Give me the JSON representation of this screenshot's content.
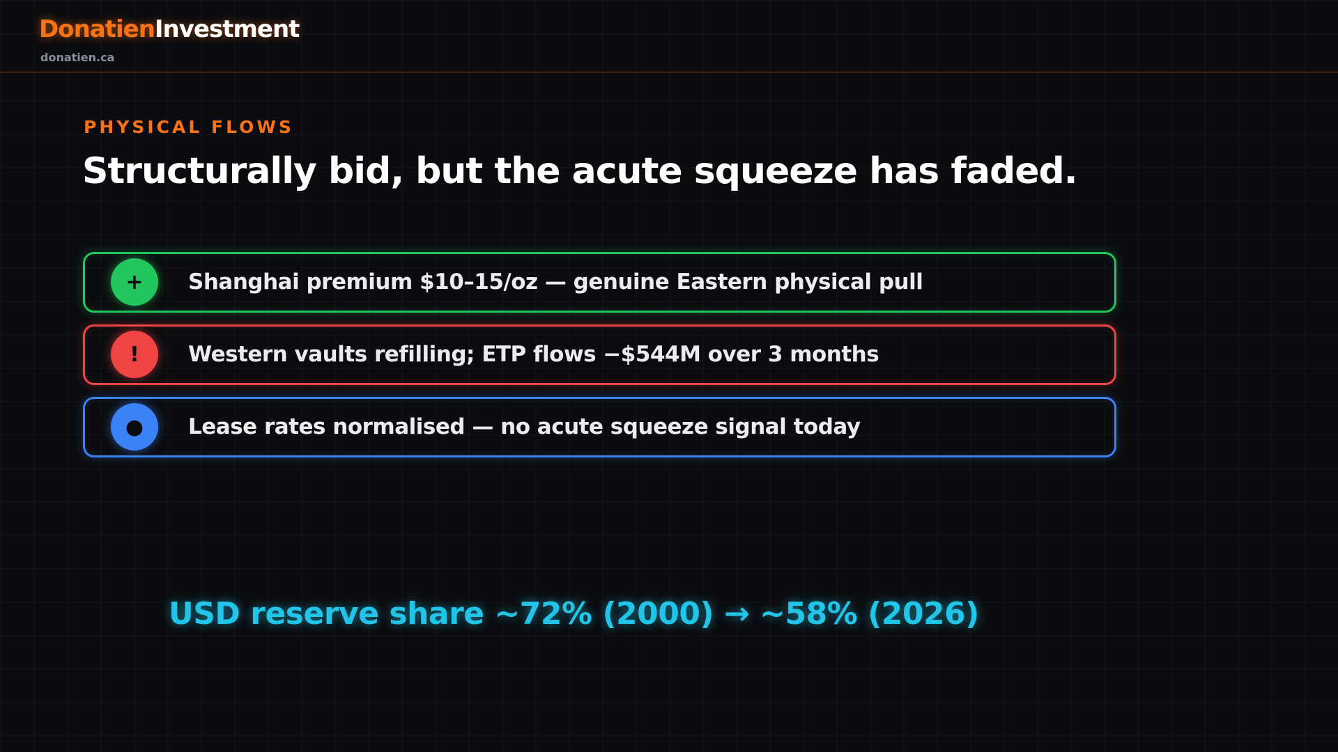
{
  "header": {
    "brand_primary": "Donatien",
    "brand_secondary": "Investment",
    "site": "donatien.ca"
  },
  "eyebrow": "PHYSICAL FLOWS",
  "title": "Structurally bid, but the acute squeeze has faded.",
  "items": [
    {
      "icon": "+",
      "text": "Shanghai premium $10–15/oz — genuine Eastern physical pull",
      "color": "#22c55e"
    },
    {
      "icon": "!",
      "text": "Western vaults refilling; ETP flows −$544M over 3 months",
      "color": "#ef4444"
    },
    {
      "icon": "●",
      "text": "Lease rates normalised — no acute squeeze signal today",
      "color": "#3b82f6"
    }
  ],
  "footer_stat": "USD reserve share ~72% (2000) → ~58% (2026)"
}
